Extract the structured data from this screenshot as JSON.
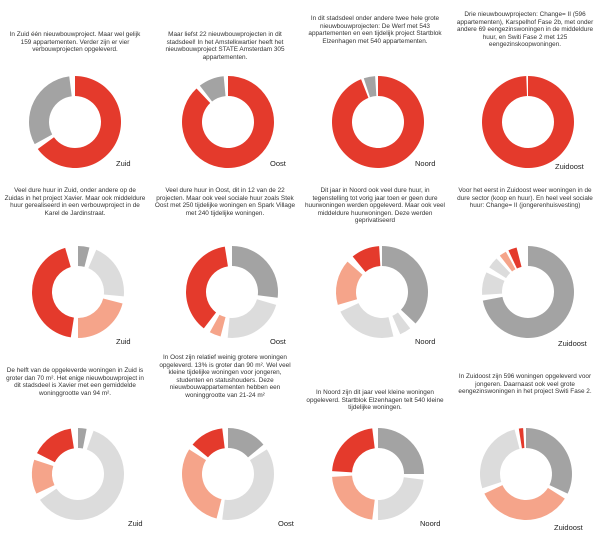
{
  "colors": {
    "red": "#e43a2c",
    "salmon": "#f5a48a",
    "darkgrey": "#a3a3a3",
    "lightgrey": "#dcdcdc"
  },
  "chart_data": [
    {
      "type": "pie",
      "caption": "In Zuid één nieuwbouwproject. Maar wel gelijk 159 appartementen. Verder zijn er vier verbouwprojecten opgeleverd.",
      "district": "Zuid",
      "slices": [
        {
          "value": 65,
          "color": "red"
        },
        {
          "value": 2,
          "color": "gap"
        },
        {
          "value": 31,
          "color": "darkgrey"
        },
        {
          "value": 2,
          "color": "gap"
        }
      ]
    },
    {
      "type": "pie",
      "caption": "Maar liefst 22 nieuwbouwprojecten in dit stadsdeel! In het Amstelkwartier heeft het nieuwbouwproject STATE Amsterdam 305 appartementen.",
      "district": "Oost",
      "slices": [
        {
          "value": 88,
          "color": "red"
        },
        {
          "value": 1.5,
          "color": "gap"
        },
        {
          "value": 9,
          "color": "darkgrey"
        },
        {
          "value": 1.5,
          "color": "gap"
        }
      ]
    },
    {
      "type": "pie",
      "caption": "In dit stadsdeel onder andere twee hele grote nieuwbouwprojecten: De Werf met 543 appartementen en een tijdelijk project Startblok Elzenhagen met 540 appartementen.",
      "district": "Noord",
      "slices": [
        {
          "value": 94,
          "color": "red"
        },
        {
          "value": 1,
          "color": "gap"
        },
        {
          "value": 4,
          "color": "darkgrey"
        },
        {
          "value": 1,
          "color": "gap"
        }
      ]
    },
    {
      "type": "pie",
      "caption": "Drie nieuwbouwprojecten: Change= II (596 appartementen), Karspelhof Fase 2b, met onder andere 69 eengezinswoningen in de middeldure huur, en Switi Fase 2 met 125 eengezinskoopwoningen.",
      "district": "Zuidoost",
      "slices": [
        {
          "value": 99.4,
          "color": "red"
        },
        {
          "value": 0.6,
          "color": "gap"
        }
      ]
    },
    {
      "type": "pie",
      "caption": "Veel dure huur in Zuid, onder andere op de Zuidas in het project Xavier. Maar ook middeldure huur gerealiseerd in een verbouwproject in de Karel de Jardinstraat.",
      "district": "Zuid",
      "slices": [
        {
          "value": 4,
          "color": "darkgrey"
        },
        {
          "value": 2.5,
          "color": "gap"
        },
        {
          "value": 20,
          "color": "lightgrey"
        },
        {
          "value": 2.5,
          "color": "gap"
        },
        {
          "value": 21,
          "color": "salmon"
        },
        {
          "value": 2.5,
          "color": "gap"
        },
        {
          "value": 43,
          "color": "red"
        },
        {
          "value": 4.5,
          "color": "gap"
        }
      ]
    },
    {
      "type": "pie",
      "caption": "Veel dure huur in Oost, dit in 12 van de 22 projecten. Maar ook veel sociale huur zoals Stek Oost met 250 tijdelijke woningen en Spark Village met 240 tijdelijke woningen.",
      "district": "Oost",
      "slices": [
        {
          "value": 27,
          "color": "darkgrey"
        },
        {
          "value": 2.5,
          "color": "gap"
        },
        {
          "value": 22,
          "color": "lightgrey"
        },
        {
          "value": 2.5,
          "color": "gap"
        },
        {
          "value": 4,
          "color": "salmon"
        },
        {
          "value": 2.5,
          "color": "gap"
        },
        {
          "value": 37,
          "color": "red"
        },
        {
          "value": 2.5,
          "color": "gap"
        }
      ]
    },
    {
      "type": "pie",
      "caption": "Dit jaar in Noord ook veel dure huur, in tegenstelling tot vorig jaar toen er geen dure huurwoningen werden opgeleverd. Maar ook veel middeldure huurwoningen. Deze werden geprivatiseerd",
      "district": "Noord",
      "slices": [
        {
          "value": 37,
          "color": "darkgrey"
        },
        {
          "value": 2.5,
          "color": "gap"
        },
        {
          "value": 4,
          "color": "lightgrey"
        },
        {
          "value": 2.5,
          "color": "gap"
        },
        {
          "value": 22,
          "color": "lightgrey"
        },
        {
          "value": 2.5,
          "color": "gap"
        },
        {
          "value": 16,
          "color": "salmon"
        },
        {
          "value": 2.5,
          "color": "gap"
        },
        {
          "value": 10,
          "color": "red"
        },
        {
          "value": 1,
          "color": "gap"
        }
      ]
    },
    {
      "type": "pie",
      "caption": "Voor het eerst in Zuidoost weer woningen in de dure sector (koop en huur). En heel veel sociale huur: Change= II (jongerenhuisvesting)",
      "district": "Zuidoost",
      "slices": [
        {
          "value": 72,
          "color": "darkgrey"
        },
        {
          "value": 2,
          "color": "gap"
        },
        {
          "value": 8,
          "color": "lightgrey"
        },
        {
          "value": 2,
          "color": "gap"
        },
        {
          "value": 4,
          "color": "lightgrey"
        },
        {
          "value": 1.5,
          "color": "gap"
        },
        {
          "value": 2.5,
          "color": "salmon"
        },
        {
          "value": 1,
          "color": "gap"
        },
        {
          "value": 3,
          "color": "red"
        },
        {
          "value": 4,
          "color": "gap"
        }
      ]
    },
    {
      "type": "pie",
      "caption": "De helft van de opgeleverde woningen in Zuid is groter dan 70 m². Het enige nieuwbouwproject in dit stadsdeel is Xavier met een gemiddelde woninggrootte van 94 m².",
      "district": "Zuid",
      "slices": [
        {
          "value": 3,
          "color": "darkgrey"
        },
        {
          "value": 2.5,
          "color": "gap"
        },
        {
          "value": 60,
          "color": "lightgrey"
        },
        {
          "value": 2.5,
          "color": "gap"
        },
        {
          "value": 12,
          "color": "salmon"
        },
        {
          "value": 2.5,
          "color": "gap"
        },
        {
          "value": 15,
          "color": "red"
        },
        {
          "value": 2.5,
          "color": "gap"
        }
      ]
    },
    {
      "type": "pie",
      "caption": "In Oost zijn relatief weinig grotere woningen opgeleverd. 13% is groter dan 90 m². Wel veel kleine tijdelijke woningen voor jongeren, studenten en statushouders. Deze nieuwbouwappartementen hebben een woninggrootte van 21-24 m²",
      "district": "Oost",
      "slices": [
        {
          "value": 14,
          "color": "darkgrey"
        },
        {
          "value": 2,
          "color": "gap"
        },
        {
          "value": 36,
          "color": "lightgrey"
        },
        {
          "value": 2,
          "color": "gap"
        },
        {
          "value": 30,
          "color": "salmon"
        },
        {
          "value": 2,
          "color": "gap"
        },
        {
          "value": 12,
          "color": "red"
        },
        {
          "value": 2,
          "color": "gap"
        }
      ]
    },
    {
      "type": "pie",
      "caption": "In Noord zijn dit jaar veel kleine woningen opgeleverd. Startblok Elzenhagen telt 540 kleine tijdelijke woningen.",
      "district": "Noord",
      "slices": [
        {
          "value": 25,
          "color": "darkgrey"
        },
        {
          "value": 2,
          "color": "gap"
        },
        {
          "value": 23,
          "color": "lightgrey"
        },
        {
          "value": 2,
          "color": "gap"
        },
        {
          "value": 22,
          "color": "salmon"
        },
        {
          "value": 2,
          "color": "gap"
        },
        {
          "value": 22,
          "color": "red"
        },
        {
          "value": 2,
          "color": "gap"
        }
      ]
    },
    {
      "type": "pie",
      "caption": "In Zuidoost zijn 596 woningen opgeleverd voor jongeren. Daarnaast ook veel grote eengezinswoningen in het project Switi Fase 2.",
      "district": "Zuidoost",
      "slices": [
        {
          "value": 32,
          "color": "darkgrey"
        },
        {
          "value": 2,
          "color": "gap"
        },
        {
          "value": 34,
          "color": "salmon"
        },
        {
          "value": 2,
          "color": "gap"
        },
        {
          "value": 26,
          "color": "lightgrey"
        },
        {
          "value": 1.5,
          "color": "gap"
        },
        {
          "value": 1.5,
          "color": "red"
        },
        {
          "value": 1,
          "color": "gap"
        }
      ]
    }
  ]
}
